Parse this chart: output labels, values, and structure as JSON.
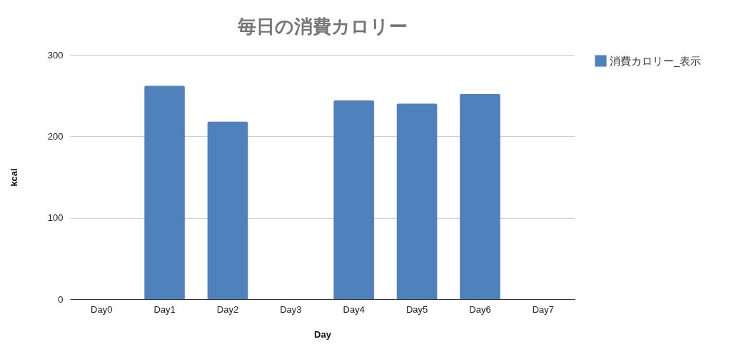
{
  "chart_data": {
    "type": "bar",
    "title": "毎日の消費カロリー",
    "xlabel": "Day",
    "ylabel": "kcal",
    "categories": [
      "Day0",
      "Day1",
      "Day2",
      "Day3",
      "Day4",
      "Day5",
      "Day6",
      "Day7"
    ],
    "series": [
      {
        "name": "消費カロリー_表示",
        "color": "#4f81bd",
        "values": [
          null,
          262,
          218,
          null,
          244,
          240,
          252,
          null
        ]
      }
    ],
    "ylim": [
      0,
      300
    ],
    "yticks": [
      0,
      100,
      200,
      300
    ],
    "grid": "y",
    "legend": "top right"
  }
}
